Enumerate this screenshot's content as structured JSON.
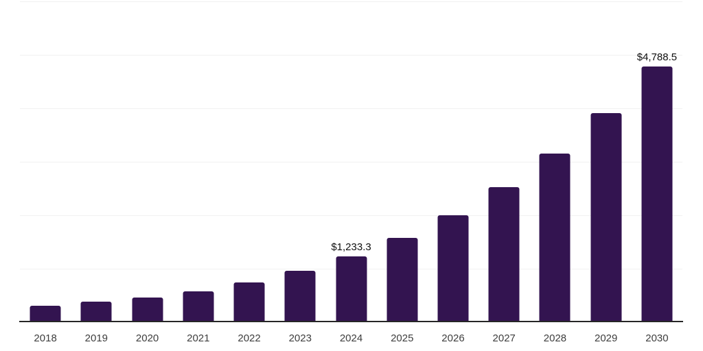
{
  "chart": {
    "background_color": "#ffffff",
    "bar_color": "#331450",
    "gridline_color": "#f1f1f1",
    "axis_line_color": "#262626",
    "year_label_color": "#3d3d3d",
    "value_label_color": "#0f0f0f"
  },
  "chart_data": {
    "type": "bar",
    "categories": [
      "2018",
      "2019",
      "2020",
      "2021",
      "2022",
      "2023",
      "2024",
      "2025",
      "2026",
      "2027",
      "2028",
      "2029",
      "2030"
    ],
    "values": [
      310,
      385,
      458,
      577,
      740,
      958,
      1233.3,
      1573,
      2000,
      2522,
      3154,
      3906,
      4788.5
    ],
    "value_labels": {
      "2024": "$1,233.3",
      "2030": "$4,788.5"
    },
    "ylim": [
      0,
      6000
    ],
    "gridline_interval": 1000,
    "grid": "horizontal-only",
    "legend": "none",
    "y_axis_labels_visible": false
  }
}
